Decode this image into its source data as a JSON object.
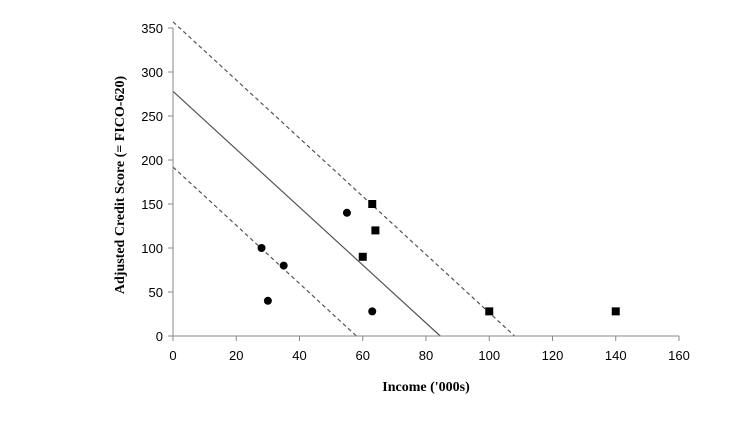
{
  "chart_data": {
    "type": "scatter",
    "title": "",
    "xlabel": "Income ('000s)",
    "ylabel": "Adjusted Credit Score (= FICO-620)",
    "xlim": [
      0,
      160
    ],
    "ylim": [
      0,
      350
    ],
    "x_ticks": [
      0,
      20,
      40,
      60,
      80,
      100,
      120,
      140,
      160
    ],
    "y_ticks": [
      0,
      50,
      100,
      150,
      200,
      250,
      300,
      350
    ],
    "grid": false,
    "legend": "none",
    "series": [
      {
        "marker": "circle",
        "color": "#000000",
        "points": [
          [
            28,
            100
          ],
          [
            30,
            40
          ],
          [
            35,
            80
          ],
          [
            55,
            140
          ],
          [
            63,
            28
          ]
        ]
      },
      {
        "marker": "square",
        "color": "#000000",
        "points": [
          [
            60,
            90
          ],
          [
            63,
            150
          ],
          [
            64,
            120
          ],
          [
            100,
            28
          ],
          [
            140,
            28
          ]
        ]
      }
    ],
    "lines": [
      {
        "style": "solid",
        "color": "#555555",
        "from": [
          0,
          278
        ],
        "to": [
          84.5,
          0
        ]
      },
      {
        "style": "dashed",
        "color": "#555555",
        "from": [
          0,
          357
        ],
        "to": [
          108,
          0
        ]
      },
      {
        "style": "dashed",
        "color": "#555555",
        "from": [
          0,
          192
        ],
        "to": [
          58,
          0
        ]
      }
    ]
  }
}
